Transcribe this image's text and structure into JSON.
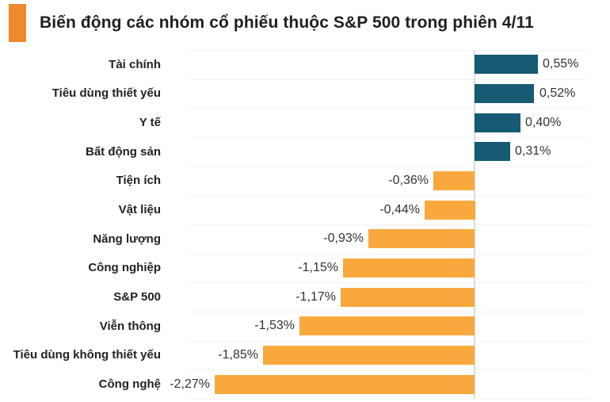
{
  "title": {
    "text": "Biến động các nhóm cổ phiếu thuộc S&P 500 trong phiên 4/11",
    "marker_color": "#EE8A2B"
  },
  "chart_data": {
    "type": "bar",
    "orientation": "horizontal",
    "title": "Biến động các nhóm cổ phiếu thuộc S&P 500 trong phiên 4/11",
    "categories": [
      "Tài chính",
      "Tiêu dùng thiết yếu",
      "Y tế",
      "Bất động sản",
      "Tiện ích",
      "Vật liệu",
      "Năng lượng",
      "Công nghiệp",
      "S&P 500",
      "Viễn thông",
      "Tiêu dùng không thiết yếu",
      "Công nghệ"
    ],
    "values": [
      0.55,
      0.52,
      0.4,
      0.31,
      -0.36,
      -0.44,
      -0.93,
      -1.15,
      -1.17,
      -1.53,
      -1.85,
      -2.27
    ],
    "value_labels": [
      "0,55%",
      "0,52%",
      "0,40%",
      "0,31%",
      "-0,36%",
      "-0,44%",
      "-0,93%",
      "-1,15%",
      "-1,17%",
      "-1,53%",
      "-1,85%",
      "-2,27%"
    ],
    "xlim": [
      -2.5,
      1.0
    ],
    "xlabel": "",
    "ylabel": "",
    "legend": "none",
    "grid": "row-separators",
    "positive_color": "#175A73",
    "negative_color": "#F9A83E",
    "gridline_color": "#f3f3f3",
    "zero_line_color": "#dadde2",
    "category_label_color": "#222222",
    "value_label_color": "#333333"
  }
}
